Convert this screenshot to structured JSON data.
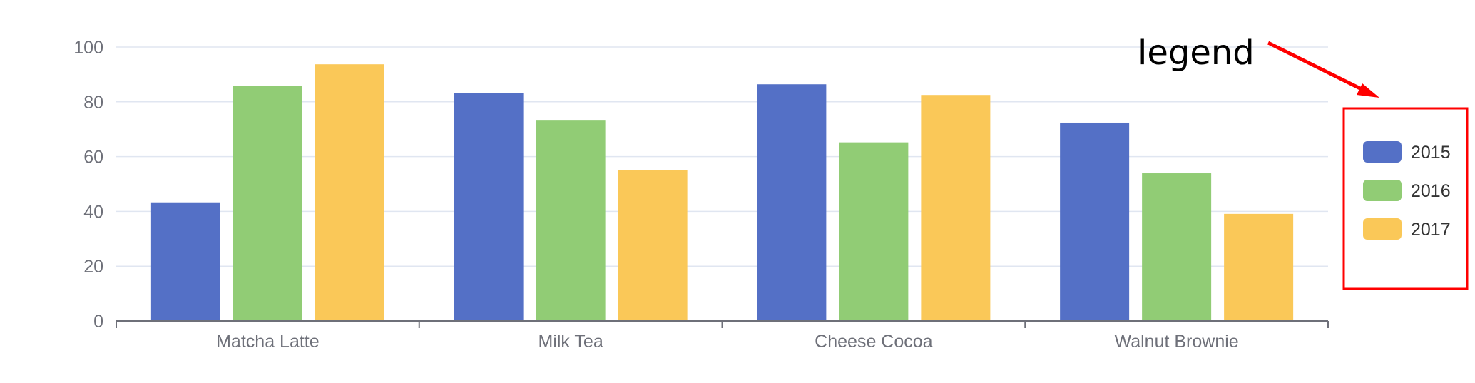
{
  "chart_data": {
    "type": "bar",
    "categories": [
      "Matcha Latte",
      "Milk Tea",
      "Cheese Cocoa",
      "Walnut Brownie"
    ],
    "series": [
      {
        "name": "2015",
        "values": [
          43.3,
          83.1,
          86.4,
          72.4
        ],
        "color": "#5470c6"
      },
      {
        "name": "2016",
        "values": [
          85.8,
          73.4,
          65.2,
          53.9
        ],
        "color": "#91cc75"
      },
      {
        "name": "2017",
        "values": [
          93.7,
          55.1,
          82.5,
          39.1
        ],
        "color": "#fac858"
      }
    ],
    "ylim": [
      0,
      100
    ],
    "yticks": [
      "0",
      "20",
      "40",
      "60",
      "80",
      "100"
    ],
    "grid": true,
    "legend_position": "right",
    "annotation": {
      "text": "legend",
      "color": "#ff0000"
    }
  }
}
